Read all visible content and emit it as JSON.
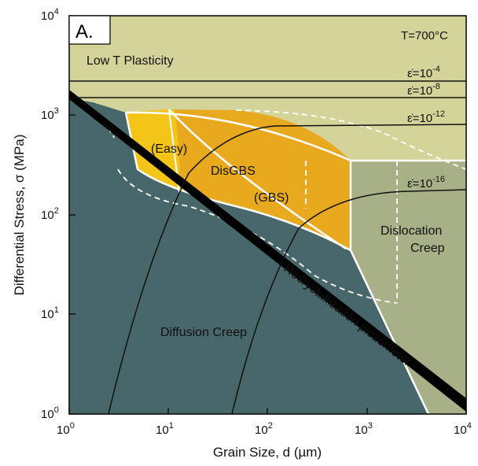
{
  "panel_label": "A.",
  "temperature": "T=700°C",
  "x_axis": {
    "label": "Grain Size, d (µm)",
    "tick_labels": [
      {
        "base": "10",
        "exp": "0"
      },
      {
        "base": "10",
        "exp": "1"
      },
      {
        "base": "10",
        "exp": "2"
      },
      {
        "base": "10",
        "exp": "3"
      },
      {
        "base": "10",
        "exp": "4"
      }
    ]
  },
  "y_axis": {
    "label": "Differential Stress, σ (MPa)",
    "tick_labels": [
      {
        "base": "10",
        "exp": "0"
      },
      {
        "base": "10",
        "exp": "1"
      },
      {
        "base": "10",
        "exp": "2"
      },
      {
        "base": "10",
        "exp": "3"
      },
      {
        "base": "10",
        "exp": "4"
      }
    ]
  },
  "regions": {
    "low_t": "Low T Plasticity",
    "easy": "(Easy)",
    "disgbs": "DisGBS",
    "gbs": "(GBS)",
    "dislocation_1": "Dislocation",
    "dislocation_2": "Creep",
    "diffusion": "Diffusion Creep",
    "piezometer": "Recrystallization piezometer"
  },
  "strain_rates": [
    {
      "label": "ε̇=10",
      "exp": "-4"
    },
    {
      "label": "ε̇=10",
      "exp": "-8"
    },
    {
      "label": "ε̇=10",
      "exp": "-12"
    },
    {
      "label": "ε̇=10",
      "exp": "-16"
    }
  ],
  "colors": {
    "low_t": "#d4d49a",
    "dislocation": "#a7b087",
    "diffusion": "#47676a",
    "disgbs": "#e9a91f",
    "easy": "#f2c518",
    "piezometer": "#000000"
  }
}
